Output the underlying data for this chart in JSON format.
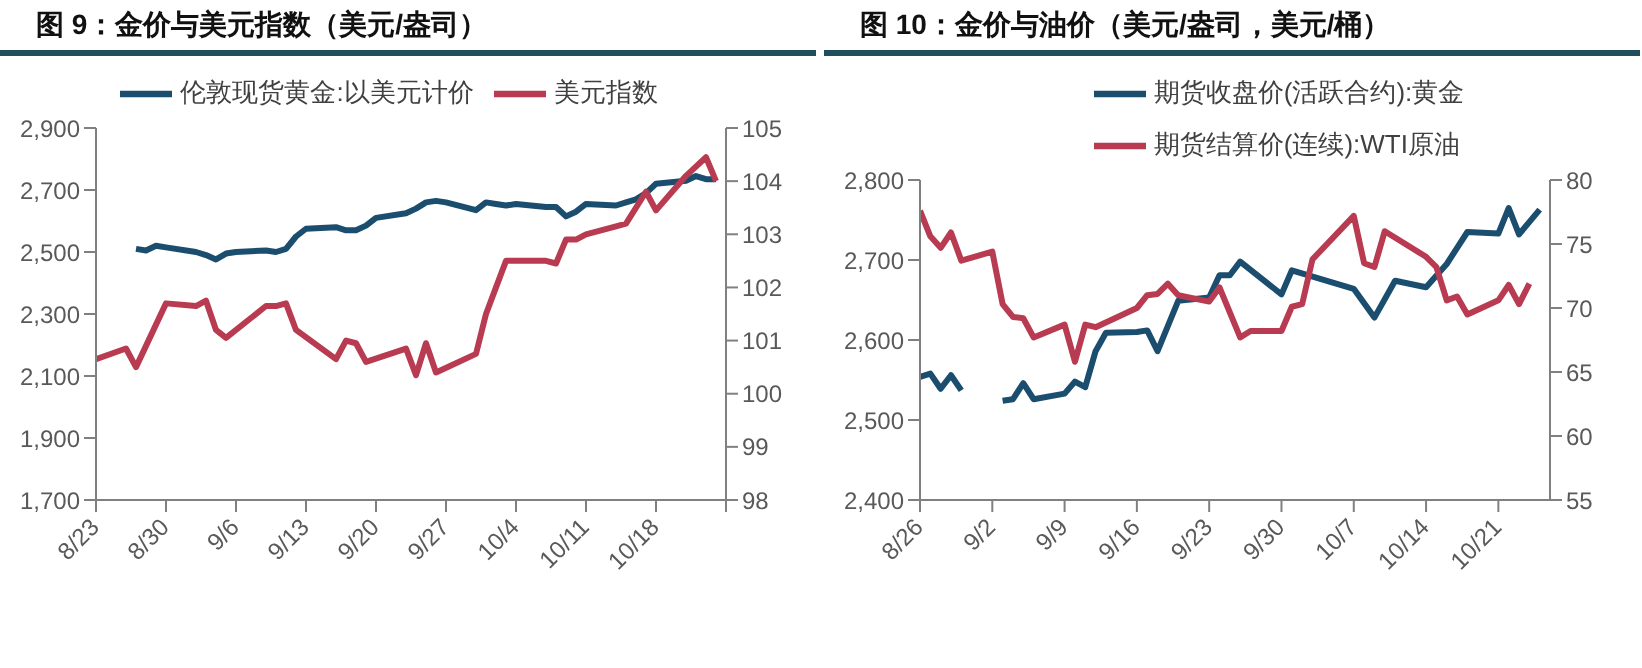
{
  "chart_data": [
    {
      "type": "line",
      "title": "图 9：金价与美元指数（美元/盎司）",
      "legend": "top",
      "marker": "none",
      "line_style": "solid",
      "xlim": [
        "--08-23",
        "--10-25"
      ],
      "xticks": [
        {
          "value": "--08-23",
          "label": "8/23"
        },
        {
          "value": "--08-30",
          "label": "8/30"
        },
        {
          "value": "--09-06",
          "label": "9/6"
        },
        {
          "value": "--09-13",
          "label": "9/13"
        },
        {
          "value": "--09-20",
          "label": "9/20"
        },
        {
          "value": "--09-27",
          "label": "9/27"
        },
        {
          "value": "--10-04",
          "label": "10/4"
        },
        {
          "value": "--10-11",
          "label": "10/11"
        },
        {
          "value": "--10-18",
          "label": "10/18"
        },
        {
          "value": "--10-25",
          "label": null
        }
      ],
      "ylim": [
        1700,
        2900
      ],
      "yticks": [
        {
          "value": 1700,
          "label": "1,700"
        },
        {
          "value": 1900,
          "label": "1,900"
        },
        {
          "value": 2100,
          "label": "2,100"
        },
        {
          "value": 2300,
          "label": "2,300"
        },
        {
          "value": 2500,
          "label": "2,500"
        },
        {
          "value": 2700,
          "label": "2,700"
        },
        {
          "value": 2900,
          "label": "2,900"
        }
      ],
      "y2lim": [
        98,
        105
      ],
      "y2ticks": [
        98,
        99,
        100,
        101,
        102,
        103,
        104,
        105
      ],
      "series": [
        {
          "name": "伦敦现货黄金:以美元计价",
          "color": "#1b4d6e",
          "x": [
            "--08-27",
            "--08-28",
            "--08-29",
            "--08-30",
            "--09-02",
            "--09-03",
            "--09-04",
            "--09-05",
            "--09-06",
            "--09-09",
            "--09-10",
            "--09-11",
            "--09-12",
            "--09-13",
            "--09-16",
            "--09-17",
            "--09-18",
            "--09-19",
            "--09-20",
            "--09-23",
            "--09-24",
            "--09-25",
            "--09-26",
            "--09-27",
            "--09-30",
            "--10-01",
            "--10-02",
            "--10-03",
            "--10-04",
            "--10-07",
            "--10-08",
            "--10-09",
            "--10-10",
            "--10-11",
            "--10-14",
            "--10-15",
            "--10-16",
            "--10-17",
            "--10-18",
            "--10-21",
            "--10-22",
            "--10-23",
            "--10-24"
          ],
          "values": [
            2510,
            2505,
            2520,
            2515,
            2500,
            2490,
            2476,
            2495,
            2500,
            2505,
            2500,
            2510,
            2550,
            2575,
            2580,
            2570,
            2570,
            2585,
            2610,
            2625,
            2640,
            2660,
            2665,
            2660,
            2635,
            2660,
            2655,
            2650,
            2655,
            2645,
            2645,
            2615,
            2630,
            2655,
            2650,
            2660,
            2670,
            2690,
            2720,
            2730,
            2745,
            2735,
            2735
          ]
        },
        {
          "name": "美元指数",
          "color": "#b83b52",
          "axis": "y2",
          "x": [
            "--08-23",
            "--08-26",
            "--08-27",
            "--08-30",
            "--09-02",
            "--09-03",
            "--09-04",
            "--09-05",
            "--09-09",
            "--09-10",
            "--09-11",
            "--09-12",
            "--09-16",
            "--09-17",
            "--09-18",
            "--09-19",
            "--09-23",
            "--09-24",
            "--09-25",
            "--09-26",
            "--09-30",
            "--10-01",
            "--10-02",
            "--10-03",
            "--10-04",
            "--10-07",
            "--10-08",
            "--10-09",
            "--10-10",
            "--10-11",
            "--10-14",
            "--10-15",
            "--10-17",
            "--10-18",
            "--10-21",
            "--10-23",
            "--10-24"
          ],
          "values": [
            100.65,
            100.85,
            100.5,
            101.7,
            101.65,
            101.75,
            101.2,
            101.05,
            101.65,
            101.65,
            101.7,
            101.2,
            100.65,
            101.0,
            100.95,
            100.6,
            100.85,
            100.35,
            100.95,
            100.4,
            100.75,
            101.5,
            102.0,
            102.5,
            102.5,
            102.5,
            102.45,
            102.9,
            102.9,
            103.0,
            103.15,
            103.2,
            103.8,
            103.45,
            104.1,
            104.45,
            104.0
          ]
        }
      ]
    },
    {
      "type": "line",
      "title": "图 10：金价与油价（美元/盎司，美元/桶）",
      "legend": "top",
      "marker": "none",
      "line_style": "solid",
      "xlim": [
        "--08-26",
        "--10-26"
      ],
      "xticks": [
        {
          "value": "--08-26",
          "label": "8/26"
        },
        {
          "value": "--09-02",
          "label": "9/2"
        },
        {
          "value": "--09-09",
          "label": "9/9"
        },
        {
          "value": "--09-16",
          "label": "9/16"
        },
        {
          "value": "--09-23",
          "label": "9/23"
        },
        {
          "value": "--09-30",
          "label": "9/30"
        },
        {
          "value": "--10-07",
          "label": "10/7"
        },
        {
          "value": "--10-14",
          "label": "10/14"
        },
        {
          "value": "--10-21",
          "label": "10/21"
        }
      ],
      "ylim": [
        2400,
        2800
      ],
      "yticks": [
        {
          "value": 2400,
          "label": "2,400"
        },
        {
          "value": 2500,
          "label": "2,500"
        },
        {
          "value": 2600,
          "label": "2,600"
        },
        {
          "value": 2700,
          "label": "2,700"
        },
        {
          "value": 2800,
          "label": "2,800"
        }
      ],
      "y2lim": [
        55,
        80
      ],
      "y2ticks": [
        55,
        60,
        65,
        70,
        75,
        80
      ],
      "series": [
        {
          "name": "期货收盘价(活跃合约):黄金",
          "color": "#1b4d6e",
          "x": [
            "--08-26",
            "--08-27",
            "--08-28",
            "--08-29",
            "--08-30",
            "--09-02",
            "--09-03",
            "--09-04",
            "--09-05",
            "--09-06",
            "--09-09",
            "--09-10",
            "--09-11",
            "--09-12",
            "--09-13",
            "--09-16",
            "--09-17",
            "--09-18",
            "--09-20",
            "--09-23",
            "--09-24",
            "--09-25",
            "--09-26",
            "--09-30",
            "--10-01",
            "--10-07",
            "--10-09",
            "--10-11",
            "--10-14",
            "--10-16",
            "--10-18",
            "--10-21",
            "--10-22",
            "--10-23",
            "--10-25"
          ],
          "values": [
            2554,
            2558,
            2539,
            2556,
            2537,
            null,
            2524,
            2526,
            2546,
            2526,
            2533,
            2548,
            2541,
            2586,
            2609,
            2610,
            2612,
            2586,
            2649,
            2653,
            2681,
            2681,
            2698,
            2657,
            2687,
            2664,
            2628,
            2674,
            2666,
            2695,
            2735,
            2733,
            2765,
            2732,
            2763
          ]
        },
        {
          "name": "期货结算价(连续):WTI原油",
          "color": "#b83b52",
          "axis": "y2",
          "x": [
            "--08-26",
            "--08-27",
            "--08-28",
            "--08-29",
            "--08-30",
            "--09-02",
            "--09-03",
            "--09-04",
            "--09-05",
            "--09-06",
            "--09-09",
            "--09-10",
            "--09-11",
            "--09-12",
            "--09-16",
            "--09-17",
            "--09-18",
            "--09-19",
            "--09-20",
            "--09-23",
            "--09-24",
            "--09-26",
            "--09-27",
            "--09-30",
            "--10-01",
            "--10-02",
            "--10-03",
            "--10-07",
            "--10-08",
            "--10-09",
            "--10-10",
            "--10-14",
            "--10-15",
            "--10-16",
            "--10-17",
            "--10-18",
            "--10-21",
            "--10-22",
            "--10-23",
            "--10-24"
          ],
          "values": [
            77.6,
            75.6,
            74.7,
            75.9,
            73.7,
            74.4,
            70.3,
            69.3,
            69.2,
            67.7,
            68.7,
            65.8,
            68.7,
            68.5,
            70.0,
            71.0,
            71.1,
            71.9,
            71.0,
            70.5,
            71.6,
            67.7,
            68.2,
            68.2,
            70.1,
            70.3,
            73.8,
            77.2,
            73.5,
            73.2,
            76.0,
            74.0,
            73.2,
            70.6,
            70.9,
            69.5,
            70.6,
            71.8,
            70.3,
            71.9
          ]
        }
      ]
    }
  ]
}
